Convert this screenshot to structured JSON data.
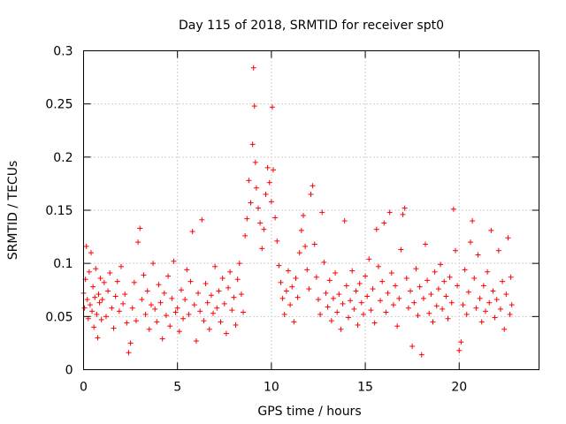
{
  "chart_data": {
    "type": "scatter",
    "title": "Day 115 of 2018, SRMTID for receiver spt0",
    "xlabel": "GPS time / hours",
    "ylabel": "SRMTID / TECUs",
    "xlim": [
      0,
      24.25
    ],
    "ylim": [
      0,
      0.3
    ],
    "x_ticks": [
      0,
      5,
      10,
      15,
      20
    ],
    "x_tick_labels": [
      "0",
      "5",
      "10",
      "15",
      "20"
    ],
    "y_ticks": [
      0,
      0.05,
      0.1,
      0.15,
      0.2,
      0.25,
      0.3
    ],
    "y_tick_labels": [
      "0",
      "0.05",
      "0.1",
      "0.15",
      "0.2",
      "0.25",
      "0.3"
    ],
    "grid": true,
    "marker": "+",
    "marker_color": "#ff0000",
    "series": [
      {
        "points": [
          [
            0.0,
            0.072
          ],
          [
            0.05,
            0.058
          ],
          [
            0.1,
            0.085
          ],
          [
            0.15,
            0.116
          ],
          [
            0.2,
            0.066
          ],
          [
            0.25,
            0.048
          ],
          [
            0.3,
            0.092
          ],
          [
            0.35,
            0.061
          ],
          [
            0.4,
            0.11
          ],
          [
            0.45,
            0.055
          ],
          [
            0.5,
            0.078
          ],
          [
            0.55,
            0.04
          ],
          [
            0.6,
            0.068
          ],
          [
            0.65,
            0.095
          ],
          [
            0.7,
            0.052
          ],
          [
            0.75,
            0.03
          ],
          [
            0.8,
            0.071
          ],
          [
            0.85,
            0.063
          ],
          [
            0.9,
            0.086
          ],
          [
            0.95,
            0.047
          ],
          [
            1.0,
            0.066
          ],
          [
            1.1,
            0.082
          ],
          [
            1.2,
            0.05
          ],
          [
            1.3,
            0.074
          ],
          [
            1.4,
            0.091
          ],
          [
            1.5,
            0.058
          ],
          [
            1.6,
            0.039
          ],
          [
            1.7,
            0.069
          ],
          [
            1.8,
            0.083
          ],
          [
            1.9,
            0.055
          ],
          [
            2.0,
            0.097
          ],
          [
            2.1,
            0.062
          ],
          [
            2.2,
            0.071
          ],
          [
            2.3,
            0.044
          ],
          [
            2.4,
            0.016
          ],
          [
            2.5,
            0.025
          ],
          [
            2.6,
            0.058
          ],
          [
            2.7,
            0.082
          ],
          [
            2.8,
            0.046
          ],
          [
            2.9,
            0.12
          ],
          [
            3.0,
            0.133
          ],
          [
            3.1,
            0.066
          ],
          [
            3.2,
            0.089
          ],
          [
            3.3,
            0.052
          ],
          [
            3.4,
            0.074
          ],
          [
            3.5,
            0.038
          ],
          [
            3.6,
            0.061
          ],
          [
            3.7,
            0.1
          ],
          [
            3.8,
            0.057
          ],
          [
            3.9,
            0.045
          ],
          [
            4.0,
            0.08
          ],
          [
            4.1,
            0.063
          ],
          [
            4.2,
            0.029
          ],
          [
            4.3,
            0.072
          ],
          [
            4.4,
            0.051
          ],
          [
            4.5,
            0.088
          ],
          [
            4.6,
            0.041
          ],
          [
            4.7,
            0.067
          ],
          [
            4.8,
            0.102
          ],
          [
            4.9,
            0.054
          ],
          [
            5.0,
            0.058
          ],
          [
            5.1,
            0.036
          ],
          [
            5.2,
            0.075
          ],
          [
            5.3,
            0.048
          ],
          [
            5.4,
            0.066
          ],
          [
            5.5,
            0.094
          ],
          [
            5.6,
            0.052
          ],
          [
            5.7,
            0.083
          ],
          [
            5.8,
            0.13
          ],
          [
            5.9,
            0.061
          ],
          [
            6.0,
            0.027
          ],
          [
            6.1,
            0.072
          ],
          [
            6.2,
            0.055
          ],
          [
            6.3,
            0.141
          ],
          [
            6.4,
            0.046
          ],
          [
            6.5,
            0.081
          ],
          [
            6.6,
            0.063
          ],
          [
            6.7,
            0.038
          ],
          [
            6.8,
            0.07
          ],
          [
            6.9,
            0.053
          ],
          [
            7.0,
            0.097
          ],
          [
            7.1,
            0.058
          ],
          [
            7.2,
            0.074
          ],
          [
            7.3,
            0.045
          ],
          [
            7.4,
            0.086
          ],
          [
            7.5,
            0.062
          ],
          [
            7.6,
            0.034
          ],
          [
            7.7,
            0.077
          ],
          [
            7.8,
            0.092
          ],
          [
            7.9,
            0.056
          ],
          [
            8.0,
            0.068
          ],
          [
            8.1,
            0.042
          ],
          [
            8.2,
            0.085
          ],
          [
            8.3,
            0.1
          ],
          [
            8.4,
            0.071
          ],
          [
            8.5,
            0.054
          ],
          [
            8.6,
            0.126
          ],
          [
            8.7,
            0.142
          ],
          [
            8.8,
            0.178
          ],
          [
            8.9,
            0.157
          ],
          [
            9.0,
            0.212
          ],
          [
            9.05,
            0.284
          ],
          [
            9.1,
            0.248
          ],
          [
            9.15,
            0.195
          ],
          [
            9.2,
            0.171
          ],
          [
            9.3,
            0.152
          ],
          [
            9.4,
            0.138
          ],
          [
            9.5,
            0.114
          ],
          [
            9.6,
            0.132
          ],
          [
            9.7,
            0.165
          ],
          [
            9.8,
            0.19
          ],
          [
            9.9,
            0.176
          ],
          [
            10.0,
            0.158
          ],
          [
            10.05,
            0.247
          ],
          [
            10.1,
            0.188
          ],
          [
            10.2,
            0.143
          ],
          [
            10.3,
            0.121
          ],
          [
            10.4,
            0.098
          ],
          [
            10.5,
            0.082
          ],
          [
            10.6,
            0.067
          ],
          [
            10.7,
            0.052
          ],
          [
            10.8,
            0.074
          ],
          [
            10.9,
            0.093
          ],
          [
            11.0,
            0.061
          ],
          [
            11.1,
            0.078
          ],
          [
            11.2,
            0.045
          ],
          [
            11.3,
            0.086
          ],
          [
            11.4,
            0.068
          ],
          [
            11.5,
            0.11
          ],
          [
            11.6,
            0.131
          ],
          [
            11.7,
            0.145
          ],
          [
            11.8,
            0.116
          ],
          [
            11.9,
            0.094
          ],
          [
            12.0,
            0.076
          ],
          [
            12.1,
            0.165
          ],
          [
            12.2,
            0.173
          ],
          [
            12.3,
            0.118
          ],
          [
            12.4,
            0.087
          ],
          [
            12.5,
            0.066
          ],
          [
            12.6,
            0.052
          ],
          [
            12.7,
            0.148
          ],
          [
            12.8,
            0.101
          ],
          [
            12.9,
            0.072
          ],
          [
            13.0,
            0.059
          ],
          [
            13.1,
            0.084
          ],
          [
            13.2,
            0.046
          ],
          [
            13.3,
            0.067
          ],
          [
            13.4,
            0.091
          ],
          [
            13.5,
            0.054
          ],
          [
            13.6,
            0.071
          ],
          [
            13.7,
            0.038
          ],
          [
            13.8,
            0.062
          ],
          [
            13.9,
            0.14
          ],
          [
            14.0,
            0.079
          ],
          [
            14.1,
            0.049
          ],
          [
            14.2,
            0.065
          ],
          [
            14.3,
            0.093
          ],
          [
            14.4,
            0.057
          ],
          [
            14.5,
            0.074
          ],
          [
            14.6,
            0.042
          ],
          [
            14.7,
            0.081
          ],
          [
            14.8,
            0.063
          ],
          [
            14.9,
            0.052
          ],
          [
            15.0,
            0.088
          ],
          [
            15.1,
            0.069
          ],
          [
            15.2,
            0.104
          ],
          [
            15.3,
            0.056
          ],
          [
            15.4,
            0.076
          ],
          [
            15.5,
            0.044
          ],
          [
            15.6,
            0.132
          ],
          [
            15.7,
            0.097
          ],
          [
            15.8,
            0.065
          ],
          [
            15.9,
            0.083
          ],
          [
            16.0,
            0.138
          ],
          [
            16.1,
            0.054
          ],
          [
            16.2,
            0.072
          ],
          [
            16.3,
            0.148
          ],
          [
            16.4,
            0.091
          ],
          [
            16.5,
            0.061
          ],
          [
            16.6,
            0.079
          ],
          [
            16.7,
            0.041
          ],
          [
            16.8,
            0.067
          ],
          [
            16.9,
            0.113
          ],
          [
            17.0,
            0.146
          ],
          [
            17.1,
            0.152
          ],
          [
            17.2,
            0.086
          ],
          [
            17.3,
            0.058
          ],
          [
            17.4,
            0.074
          ],
          [
            17.5,
            0.022
          ],
          [
            17.6,
            0.063
          ],
          [
            17.7,
            0.095
          ],
          [
            17.8,
            0.051
          ],
          [
            17.9,
            0.078
          ],
          [
            18.0,
            0.014
          ],
          [
            18.1,
            0.067
          ],
          [
            18.2,
            0.118
          ],
          [
            18.3,
            0.084
          ],
          [
            18.4,
            0.053
          ],
          [
            18.5,
            0.071
          ],
          [
            18.6,
            0.045
          ],
          [
            18.7,
            0.092
          ],
          [
            18.8,
            0.06
          ],
          [
            18.9,
            0.076
          ],
          [
            19.0,
            0.099
          ],
          [
            19.1,
            0.057
          ],
          [
            19.2,
            0.083
          ],
          [
            19.3,
            0.069
          ],
          [
            19.4,
            0.048
          ],
          [
            19.5,
            0.087
          ],
          [
            19.6,
            0.063
          ],
          [
            19.7,
            0.151
          ],
          [
            19.8,
            0.112
          ],
          [
            19.9,
            0.079
          ],
          [
            20.0,
            0.018
          ],
          [
            20.1,
            0.026
          ],
          [
            20.2,
            0.061
          ],
          [
            20.3,
            0.094
          ],
          [
            20.4,
            0.052
          ],
          [
            20.5,
            0.073
          ],
          [
            20.6,
            0.12
          ],
          [
            20.7,
            0.14
          ],
          [
            20.8,
            0.086
          ],
          [
            20.9,
            0.058
          ],
          [
            21.0,
            0.108
          ],
          [
            21.1,
            0.067
          ],
          [
            21.2,
            0.045
          ],
          [
            21.3,
            0.079
          ],
          [
            21.4,
            0.055
          ],
          [
            21.5,
            0.092
          ],
          [
            21.6,
            0.063
          ],
          [
            21.7,
            0.131
          ],
          [
            21.8,
            0.074
          ],
          [
            21.9,
            0.049
          ],
          [
            22.0,
            0.066
          ],
          [
            22.1,
            0.112
          ],
          [
            22.2,
            0.057
          ],
          [
            22.3,
            0.083
          ],
          [
            22.4,
            0.038
          ],
          [
            22.5,
            0.071
          ],
          [
            22.6,
            0.124
          ],
          [
            22.7,
            0.052
          ],
          [
            22.75,
            0.087
          ],
          [
            22.8,
            0.061
          ]
        ]
      }
    ]
  }
}
